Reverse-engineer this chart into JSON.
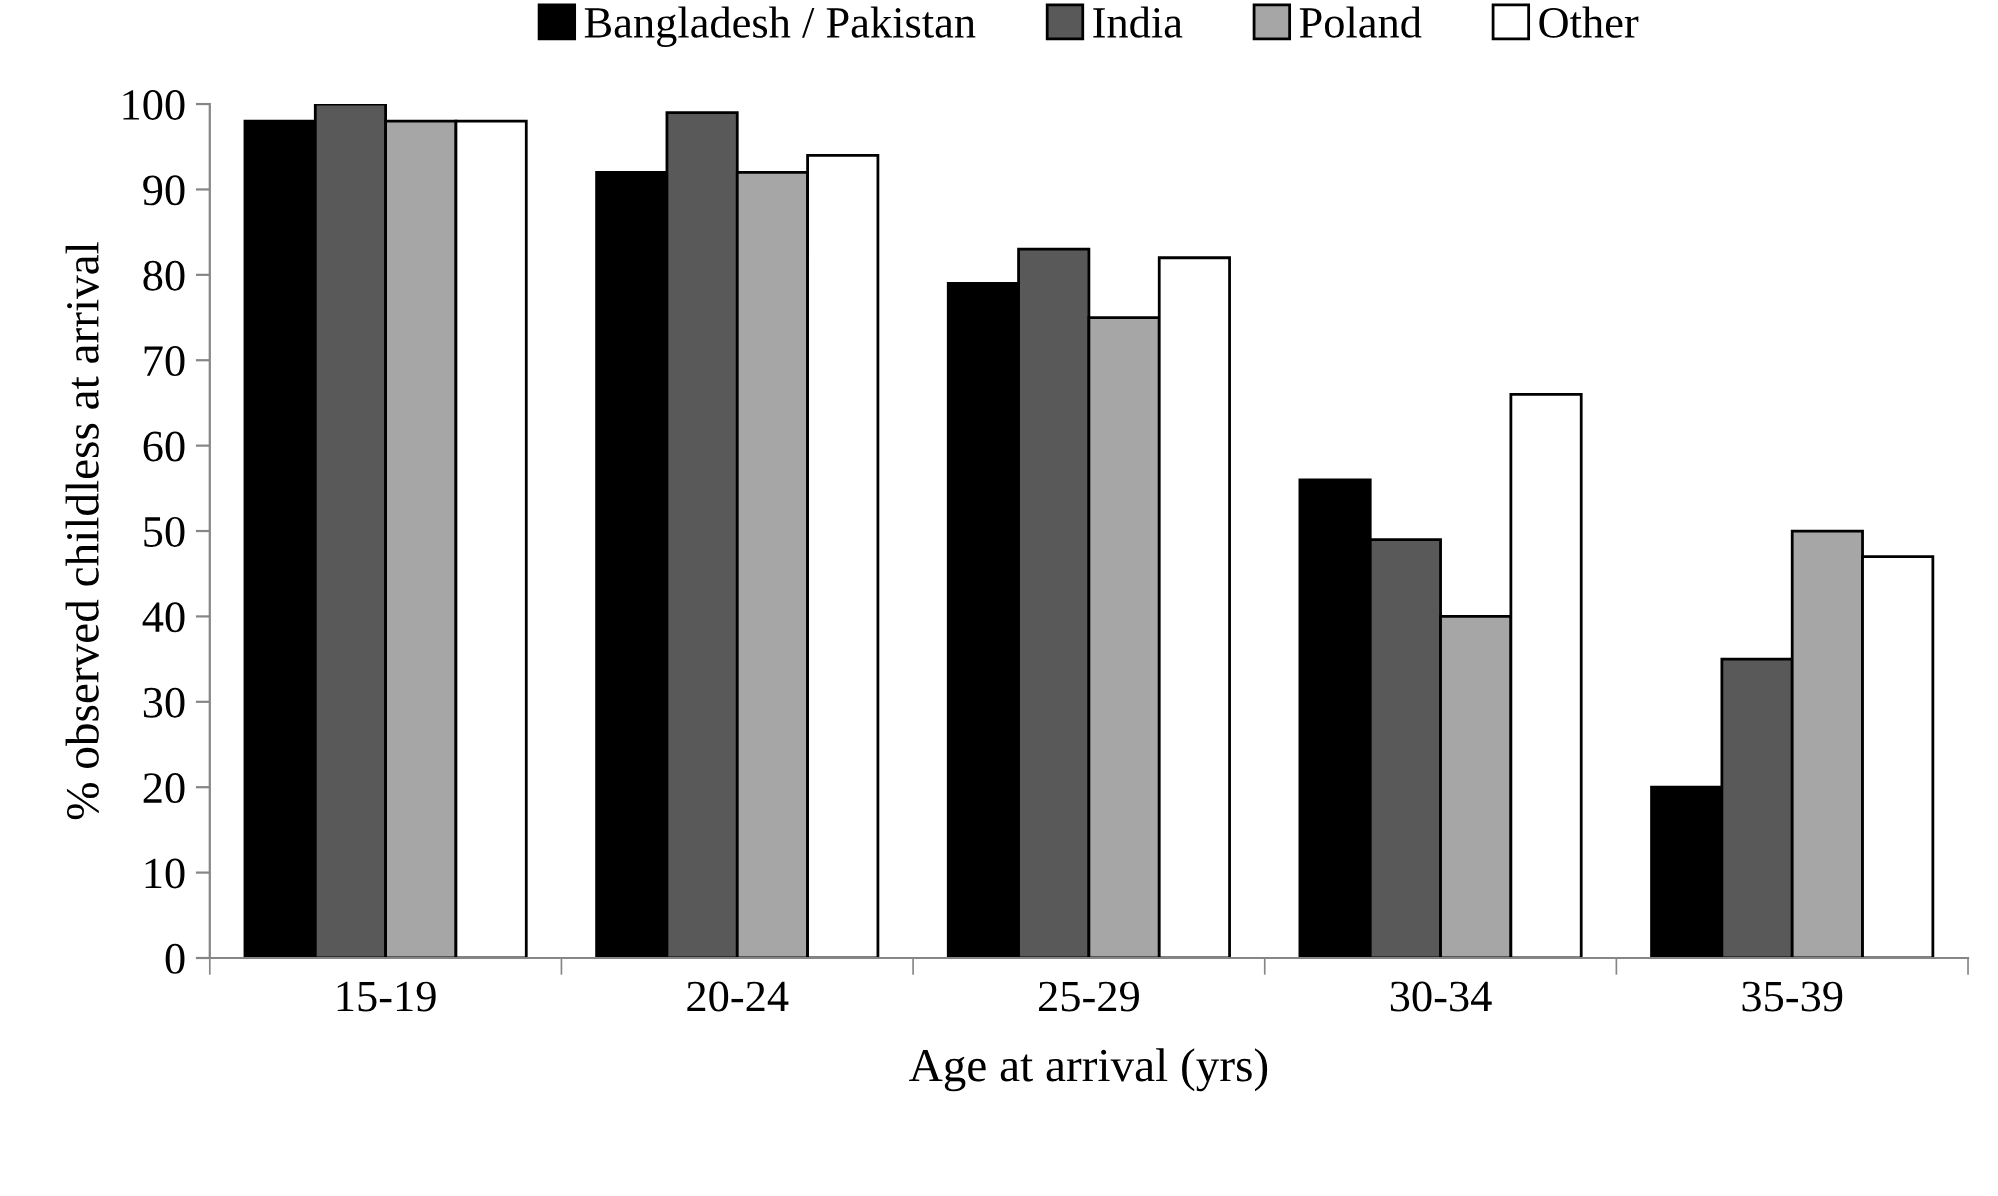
{
  "chart_data": {
    "type": "bar",
    "xlabel": "Age at arrival (yrs)",
    "ylabel": "% observed childless at arrival",
    "categories": [
      "15-19",
      "20-24",
      "25-29",
      "30-34",
      "35-39"
    ],
    "series": [
      {
        "name": "Bangladesh / Pakistan",
        "color": "#000000",
        "values": [
          98,
          92,
          79,
          56,
          20
        ]
      },
      {
        "name": "India",
        "color": "#595959",
        "values": [
          100,
          99,
          83,
          49,
          35
        ]
      },
      {
        "name": "Poland",
        "color": "#a6a6a6",
        "values": [
          98,
          92,
          75,
          40,
          50
        ]
      },
      {
        "name": "Other",
        "color": "#ffffff",
        "values": [
          98,
          94,
          82,
          66,
          47
        ]
      }
    ],
    "ylim": [
      0,
      100
    ],
    "yticks": [
      0,
      10,
      20,
      30,
      40,
      50,
      60,
      70,
      80,
      90,
      100
    ],
    "grid": false,
    "legend": "top"
  }
}
